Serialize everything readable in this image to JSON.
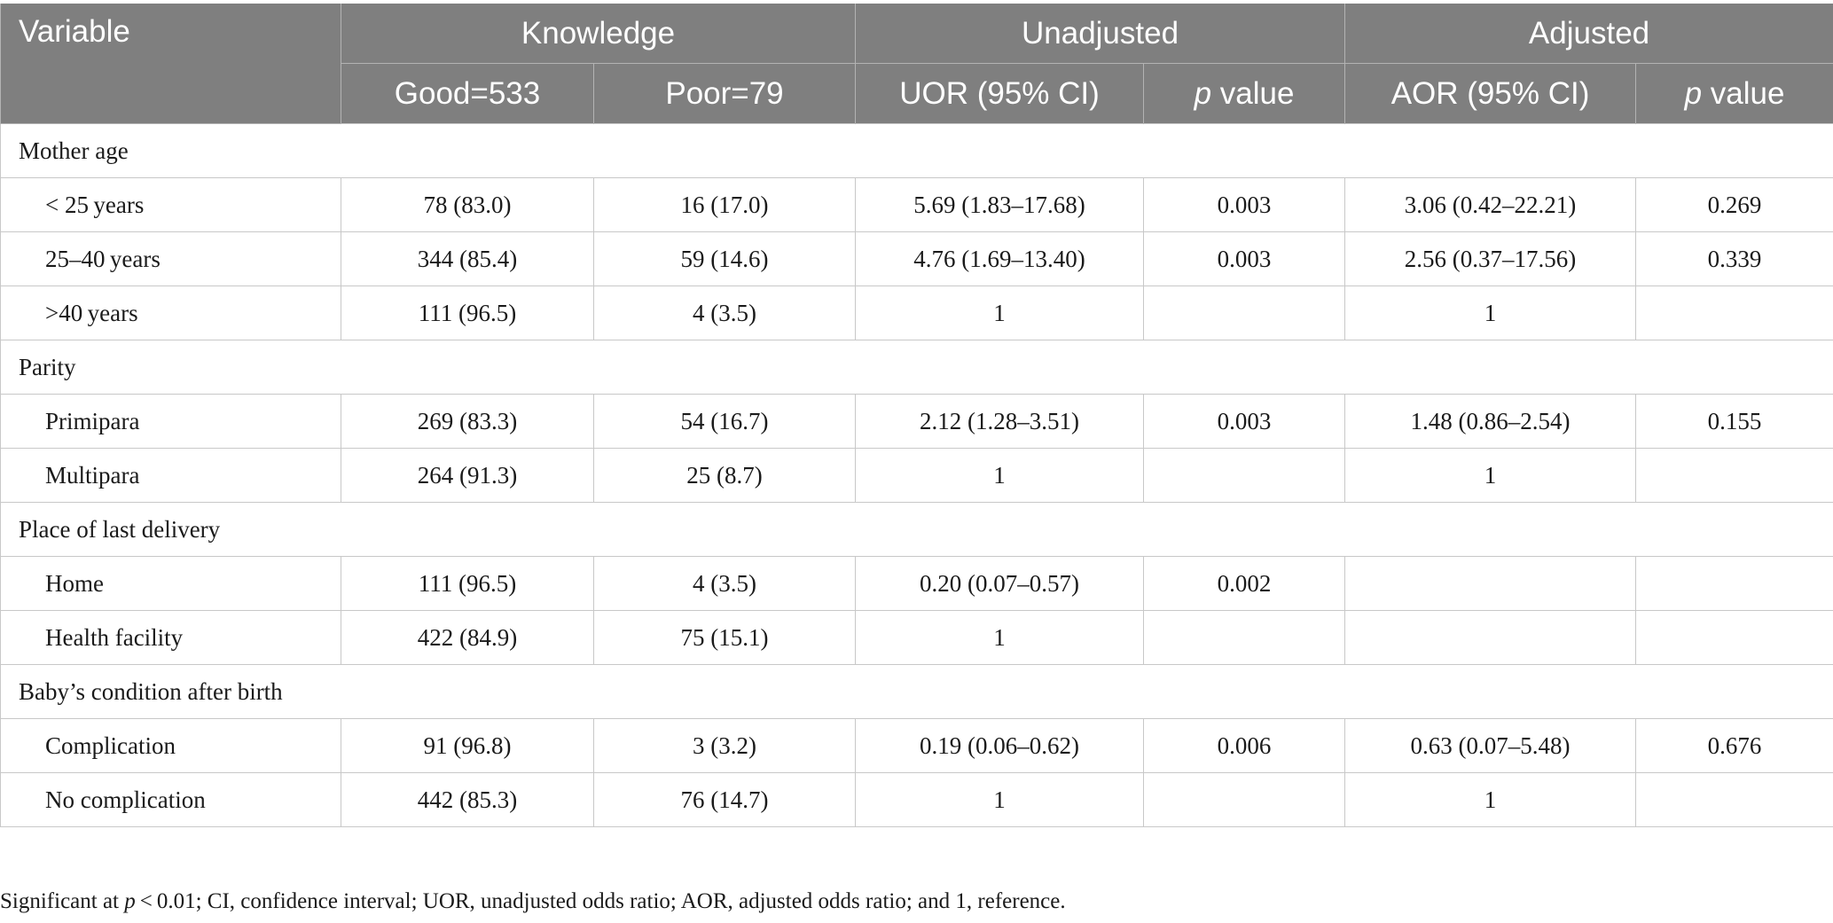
{
  "header": {
    "variable": "Variable",
    "knowledge": "Knowledge",
    "unadjusted": "Unadjusted",
    "adjusted": "Adjusted",
    "good": "Good=533",
    "poor": "Poor=79",
    "uor": "UOR (95% CI)",
    "p_italic": "p",
    "p_rest": " value",
    "aor": "AOR (95% CI)"
  },
  "groups": [
    {
      "title": "Mother age",
      "rows": [
        {
          "label": "< 25 years",
          "good": "78 (83.0)",
          "poor": "16 (17.0)",
          "uor": "5.69 (1.83–17.68)",
          "p1": "0.003",
          "aor": "3.06 (0.42–22.21)",
          "p2": "0.269"
        },
        {
          "label": "25–40 years",
          "good": "344 (85.4)",
          "poor": "59 (14.6)",
          "uor": "4.76 (1.69–13.40)",
          "p1": "0.003",
          "aor": "2.56 (0.37–17.56)",
          "p2": "0.339"
        },
        {
          "label": ">40 years",
          "good": "111 (96.5)",
          "poor": "4 (3.5)",
          "uor": "1",
          "p1": "",
          "aor": "1",
          "p2": ""
        }
      ]
    },
    {
      "title": "Parity",
      "rows": [
        {
          "label": "Primipara",
          "good": "269 (83.3)",
          "poor": "54 (16.7)",
          "uor": "2.12 (1.28–3.51)",
          "p1": "0.003",
          "aor": "1.48 (0.86–2.54)",
          "p2": "0.155"
        },
        {
          "label": "Multipara",
          "good": "264 (91.3)",
          "poor": "25 (8.7)",
          "uor": "1",
          "p1": "",
          "aor": "1",
          "p2": ""
        }
      ]
    },
    {
      "title": "Place of last delivery",
      "rows": [
        {
          "label": "Home",
          "good": "111 (96.5)",
          "poor": "4 (3.5)",
          "uor": "0.20 (0.07–0.57)",
          "p1": "0.002",
          "aor": "",
          "p2": ""
        },
        {
          "label": "Health facility",
          "good": "422 (84.9)",
          "poor": "75 (15.1)",
          "uor": "1",
          "p1": "",
          "aor": "",
          "p2": ""
        }
      ]
    },
    {
      "title": "Baby’s condition after birth",
      "rows": [
        {
          "label": "Complication",
          "good": "91 (96.8)",
          "poor": "3 (3.2)",
          "uor": "0.19 (0.06–0.62)",
          "p1": "0.006",
          "aor": "0.63 (0.07–5.48)",
          "p2": "0.676"
        },
        {
          "label": "No complication",
          "good": "442 (85.3)",
          "poor": "76 (14.7)",
          "uor": "1",
          "p1": "",
          "aor": "1",
          "p2": ""
        }
      ]
    }
  ],
  "footnote": {
    "pre": "Significant at ",
    "p": "p",
    "post": " < 0.01; CI, confidence interval; UOR, unadjusted odds ratio; AOR, adjusted odds ratio; and 1, reference."
  }
}
